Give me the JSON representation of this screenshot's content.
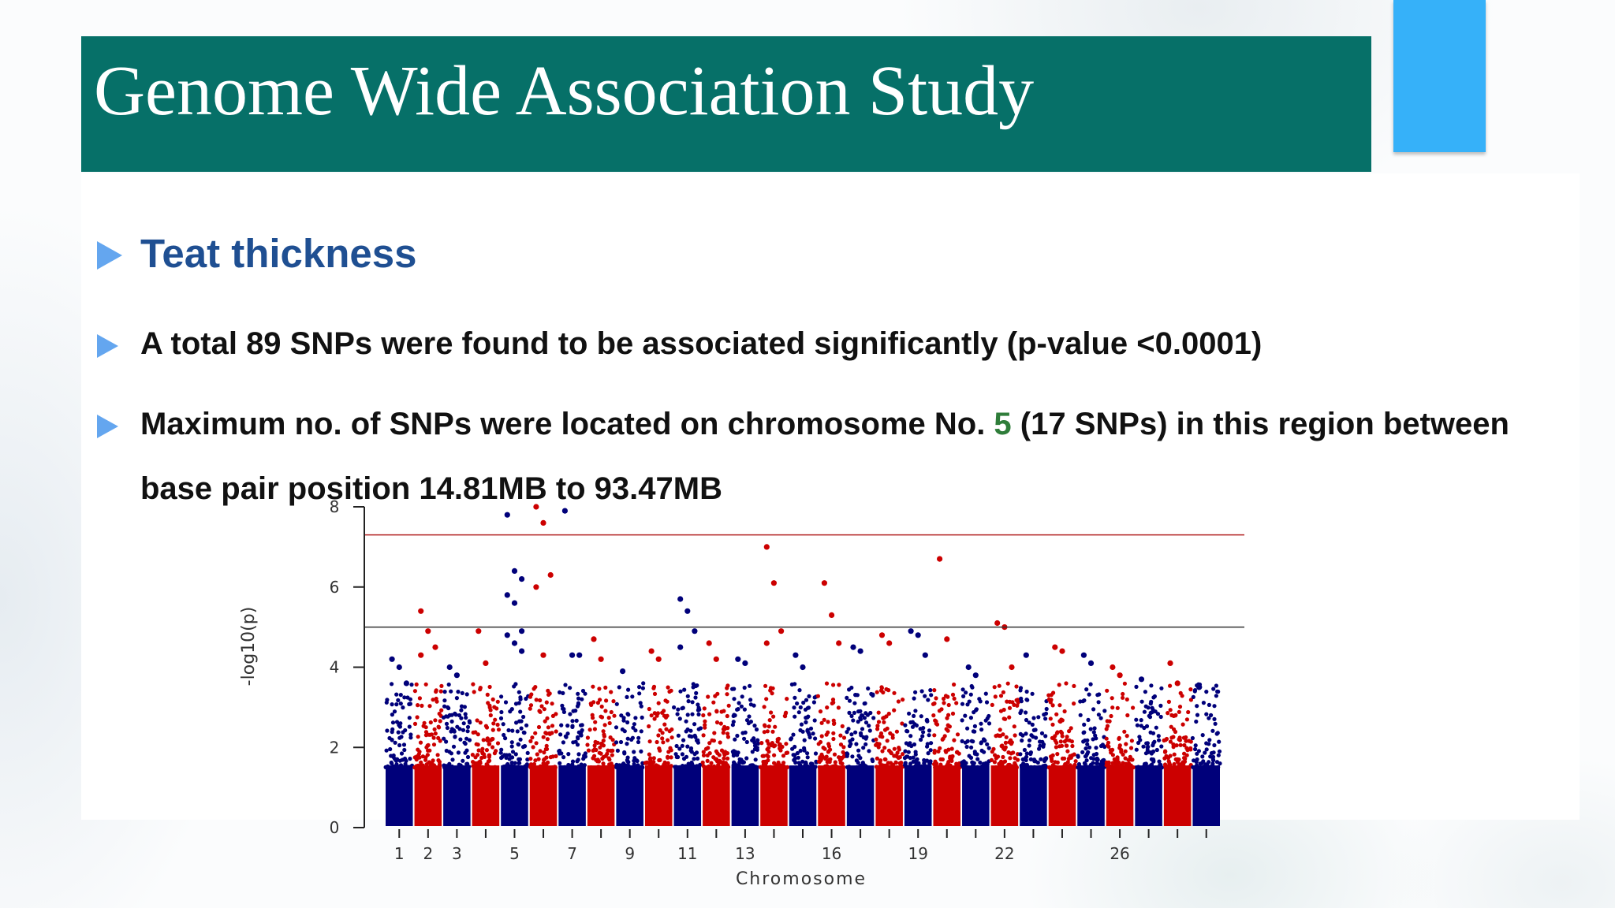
{
  "slide": {
    "title": "Genome Wide Association Study",
    "accent_color": "#36b1f9",
    "title_bar_color": "#067068"
  },
  "bullets": [
    {
      "text": "Teat thickness"
    },
    {
      "text": "A total 89 SNPs were found to be associated significantly (p-value <0.0001)"
    },
    {
      "text_before": "Maximum no. of SNPs were located on chromosome No. ",
      "highlight": "5",
      "text_after": " (17 SNPs) in this region between",
      "line2": "base pair position 14.81MB to 93.47MB"
    }
  ],
  "chart_data": {
    "type": "scatter",
    "subtype": "manhattan",
    "xlabel": "Chromosome",
    "ylabel": "-log10(p)",
    "ylim": [
      0,
      8
    ],
    "yticks": [
      0,
      2,
      4,
      6,
      8
    ],
    "xtick_labels": [
      "1",
      "2",
      "3",
      "5",
      "7",
      "9",
      "11",
      "13",
      "16",
      "19",
      "22",
      "26"
    ],
    "xtick_chromosomes": [
      1,
      2,
      3,
      5,
      7,
      9,
      11,
      13,
      16,
      19,
      22,
      26
    ],
    "chromosome_count": 29,
    "colors": {
      "odd": "#00007a",
      "even": "#cc0000"
    },
    "thresholds": [
      {
        "value": 7.3,
        "color": "#b22222"
      },
      {
        "value": 5.0,
        "color": "#333333"
      }
    ],
    "peaks": [
      {
        "chr": 1,
        "values": [
          4.2,
          4.0,
          3.6
        ]
      },
      {
        "chr": 2,
        "values": [
          5.4,
          4.9,
          4.5,
          4.3
        ]
      },
      {
        "chr": 3,
        "values": [
          4.0,
          3.8
        ]
      },
      {
        "chr": 4,
        "values": [
          4.9,
          4.1
        ]
      },
      {
        "chr": 5,
        "values": [
          7.8,
          6.4,
          6.2,
          5.8,
          5.6,
          4.9,
          4.8,
          4.6,
          4.4
        ]
      },
      {
        "chr": 6,
        "values": [
          8.0,
          7.6,
          6.3,
          6.0,
          4.3
        ]
      },
      {
        "chr": 7,
        "values": [
          7.9,
          4.3,
          4.3
        ]
      },
      {
        "chr": 8,
        "values": [
          4.7,
          4.2
        ]
      },
      {
        "chr": 9,
        "values": [
          3.9
        ]
      },
      {
        "chr": 10,
        "values": [
          4.4,
          4.2
        ]
      },
      {
        "chr": 11,
        "values": [
          5.7,
          5.4,
          4.9,
          4.5
        ]
      },
      {
        "chr": 12,
        "values": [
          4.6,
          4.2
        ]
      },
      {
        "chr": 13,
        "values": [
          4.2,
          4.1
        ]
      },
      {
        "chr": 14,
        "values": [
          7.0,
          6.1,
          4.9,
          4.6
        ]
      },
      {
        "chr": 15,
        "values": [
          4.3,
          4.0
        ]
      },
      {
        "chr": 16,
        "values": [
          6.1,
          5.3,
          4.6
        ]
      },
      {
        "chr": 17,
        "values": [
          4.5,
          4.4
        ]
      },
      {
        "chr": 18,
        "values": [
          4.8,
          4.6
        ]
      },
      {
        "chr": 19,
        "values": [
          4.9,
          4.8,
          4.3
        ]
      },
      {
        "chr": 20,
        "values": [
          6.7,
          4.7
        ]
      },
      {
        "chr": 21,
        "values": [
          4.0,
          3.8
        ]
      },
      {
        "chr": 22,
        "values": [
          5.1,
          5.0,
          4.0
        ]
      },
      {
        "chr": 23,
        "values": [
          4.3
        ]
      },
      {
        "chr": 24,
        "values": [
          4.5,
          4.4
        ]
      },
      {
        "chr": 25,
        "values": [
          4.3,
          4.1
        ]
      },
      {
        "chr": 26,
        "values": [
          4.0,
          3.8
        ]
      },
      {
        "chr": 27,
        "values": [
          3.7
        ]
      },
      {
        "chr": 28,
        "values": [
          4.1,
          3.6
        ]
      },
      {
        "chr": 29,
        "values": [
          3.5
        ]
      }
    ]
  }
}
